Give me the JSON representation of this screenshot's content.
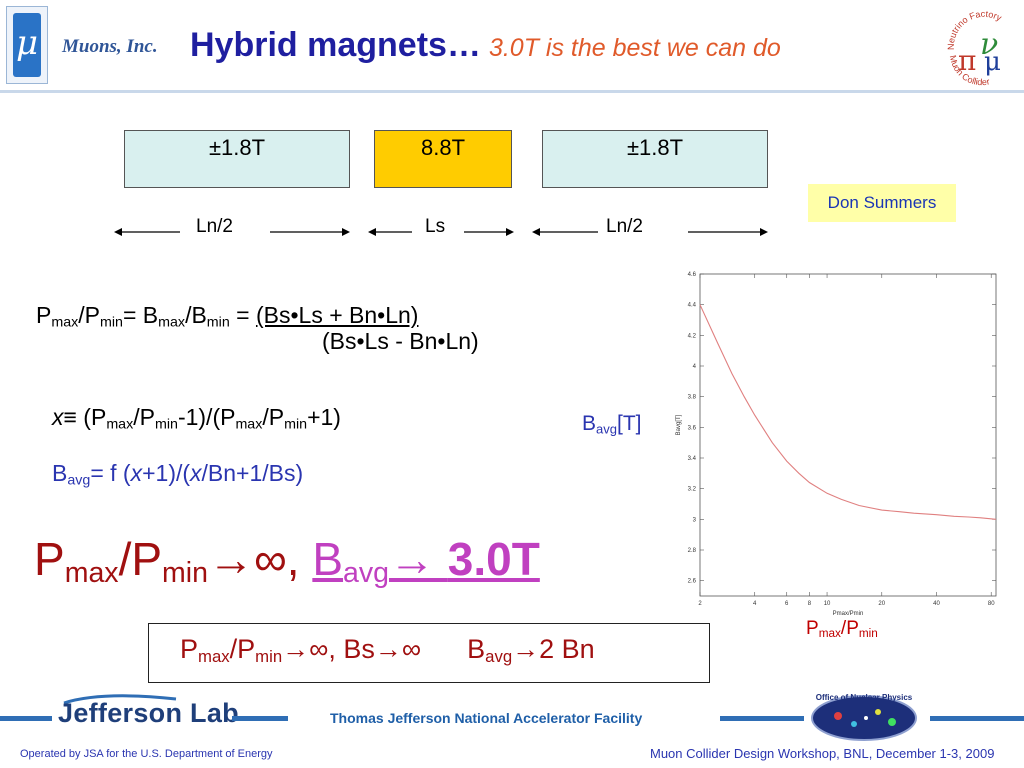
{
  "header": {
    "logo_glyph": "μ",
    "brand": "Muons, Inc.",
    "title": "Hybrid magnets…",
    "subtitle": "3.0T is the best we can do",
    "logo_right_text_top": "Neutrino Factory",
    "logo_right_text_bottom": "Muon Collider"
  },
  "magnets": [
    {
      "label": "±1.8T",
      "color": "#d9f0ef"
    },
    {
      "label": "8.8T",
      "color": "#ffcc00"
    },
    {
      "label": "±1.8T",
      "color": "#d9f0ef"
    }
  ],
  "lengths": [
    "Ln/2",
    "Ls",
    "Ln/2"
  ],
  "author": "Don Summers",
  "formulas": {
    "ratio_lhs": {
      "P": "P",
      "max": "max",
      "slash": "/P",
      "min": "min",
      "eq": "= B",
      "bmax": "max",
      "bslash": "/B",
      "bmin": "min",
      "eq2": " = "
    },
    "numerator": "(Bs•Ls + Bn•Ln)",
    "denominator": "(Bs•Ls - Bn•Ln)",
    "x_def": {
      "x": "x",
      "eqv": "≡ (P",
      "max": "max",
      "a": "/P",
      "min": "min",
      "b": "-1)/(P",
      "max2": "max",
      "c": "/P",
      "min2": "min",
      "d": "+1)"
    },
    "bavg_def": {
      "B": "B",
      "avg": "avg",
      "a": "= f (",
      "x": "x",
      "b": "+1)/(",
      "x2": "x",
      "c": "/Bn+1/Bs)"
    }
  },
  "big_statement": {
    "P": "P",
    "max": "max",
    "slash": "/P",
    "min": "min",
    "arrow_inf": "→∞, ",
    "B": "B",
    "avg": "avg",
    "arrow": "→ ",
    "value": "3.0T"
  },
  "result_box": {
    "P": "P",
    "max": "max",
    "slash": "/P",
    "min": "min",
    "rest": "→∞, Bs→∞",
    "B": "B",
    "avg": "avg",
    "limit": "→2 Bn"
  },
  "plot_labels": {
    "y_side": {
      "B": "B",
      "avg": "avg",
      "unit": "[T]"
    },
    "x_side": {
      "P": "P",
      "max": "max",
      "slash": "/P",
      "min": "min"
    }
  },
  "chart_data": {
    "type": "line",
    "xlabel": "Pmax/Pmin",
    "ylabel": "Bavg[T]",
    "x_scale": "log",
    "xlim": [
      2,
      85
    ],
    "ylim": [
      2.5,
      4.6
    ],
    "x_ticks": [
      2,
      4,
      6,
      8,
      10,
      20,
      40,
      80
    ],
    "y_ticks": [
      2.6,
      2.8,
      3,
      3.2,
      3.4,
      3.6,
      3.8,
      4,
      4.2,
      4.4,
      4.6
    ],
    "series": [
      {
        "color": "#e08080",
        "x": [
          2,
          2.5,
          3,
          3.5,
          4,
          5,
          6,
          7,
          8,
          10,
          12,
          15,
          20,
          25,
          30,
          40,
          50,
          60,
          70,
          85
        ],
        "y": [
          4.4,
          4.15,
          3.95,
          3.8,
          3.68,
          3.5,
          3.38,
          3.3,
          3.24,
          3.17,
          3.13,
          3.09,
          3.06,
          3.05,
          3.04,
          3.03,
          3.02,
          3.015,
          3.01,
          3.0
        ]
      }
    ]
  },
  "footer": {
    "lab": "Jefferson Lab",
    "facility": "Thomas Jefferson National Accelerator Facility",
    "onp": "Office of Nuclear Physics",
    "operated": "Operated by JSA for the U.S. Department of Energy",
    "event": "Muon Collider Design Workshop,  BNL,  December 1-3, 2009"
  }
}
